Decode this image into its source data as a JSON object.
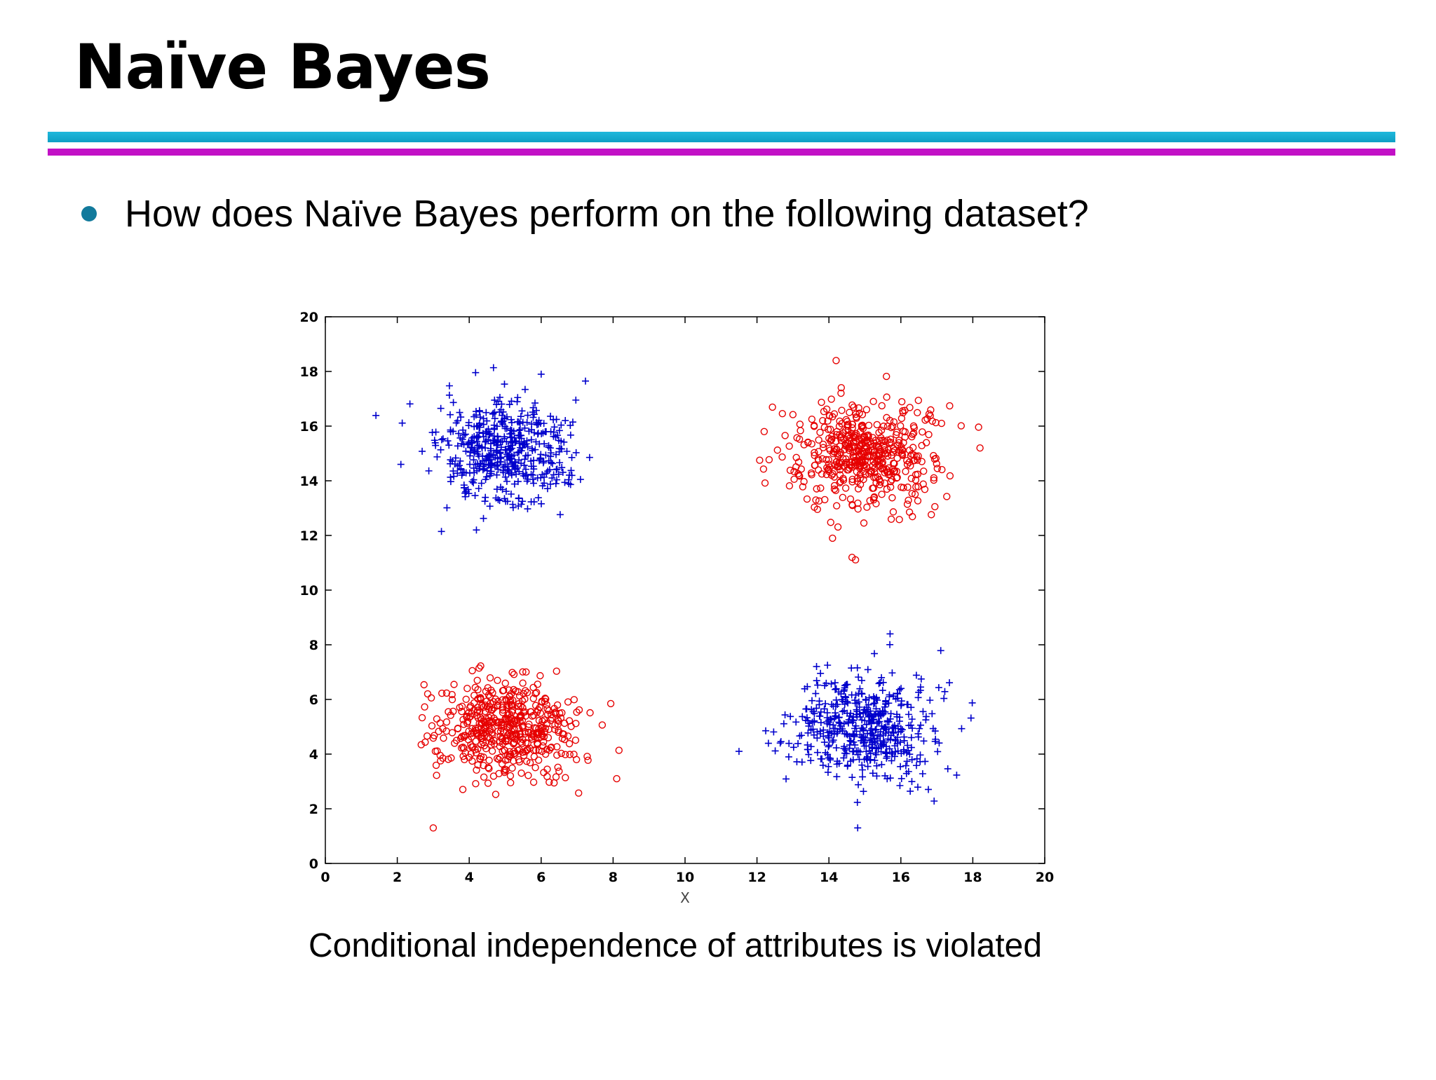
{
  "slide": {
    "title": "Naïve Bayes",
    "bullet": "How does Naïve Bayes perform on the following dataset?",
    "caption": "Conditional independence of attributes is violated"
  },
  "colors": {
    "accent_cyan": "#1fb8dc",
    "accent_magenta": "#c211c6",
    "bullet": "#127a9c",
    "class_plus": "#0000cc",
    "class_circle": "#e60000"
  },
  "chart_data": {
    "type": "scatter",
    "title": "",
    "xlabel": "X",
    "ylabel": "",
    "xlim": [
      0,
      20
    ],
    "ylim": [
      0,
      20
    ],
    "xticks": [
      0,
      2,
      4,
      6,
      8,
      10,
      12,
      14,
      16,
      18,
      20
    ],
    "yticks": [
      0,
      2,
      4,
      6,
      8,
      10,
      12,
      14,
      16,
      18,
      20
    ],
    "grid": false,
    "legend": "none",
    "series": [
      {
        "marker": "plus",
        "color": "#0000cc",
        "clusters": [
          {
            "center": [
              5,
              15
            ],
            "spread": [
              0.9,
              0.95
            ],
            "n": 500
          },
          {
            "center": [
              15,
              5
            ],
            "spread": [
              0.95,
              0.95
            ],
            "n": 500
          }
        ],
        "outliers": [
          [
            2.1,
            14.6
          ],
          [
            11.5,
            4.1
          ],
          [
            14.8,
            1.3
          ],
          [
            15.7,
            8.4
          ],
          [
            6,
            17.9
          ],
          [
            4.2,
            12.2
          ]
        ]
      },
      {
        "marker": "circle",
        "color": "#e60000",
        "clusters": [
          {
            "center": [
              5,
              5
            ],
            "spread": [
              0.95,
              0.95
            ],
            "n": 500
          },
          {
            "center": [
              15,
              15
            ],
            "spread": [
              0.95,
              0.95
            ],
            "n": 500
          }
        ],
        "outliers": [
          [
            3,
            1.3
          ],
          [
            8.1,
            3.1
          ],
          [
            14.2,
            18.4
          ],
          [
            12.2,
            15.8
          ],
          [
            18.2,
            15.2
          ],
          [
            14.1,
            11.9
          ]
        ]
      }
    ]
  }
}
